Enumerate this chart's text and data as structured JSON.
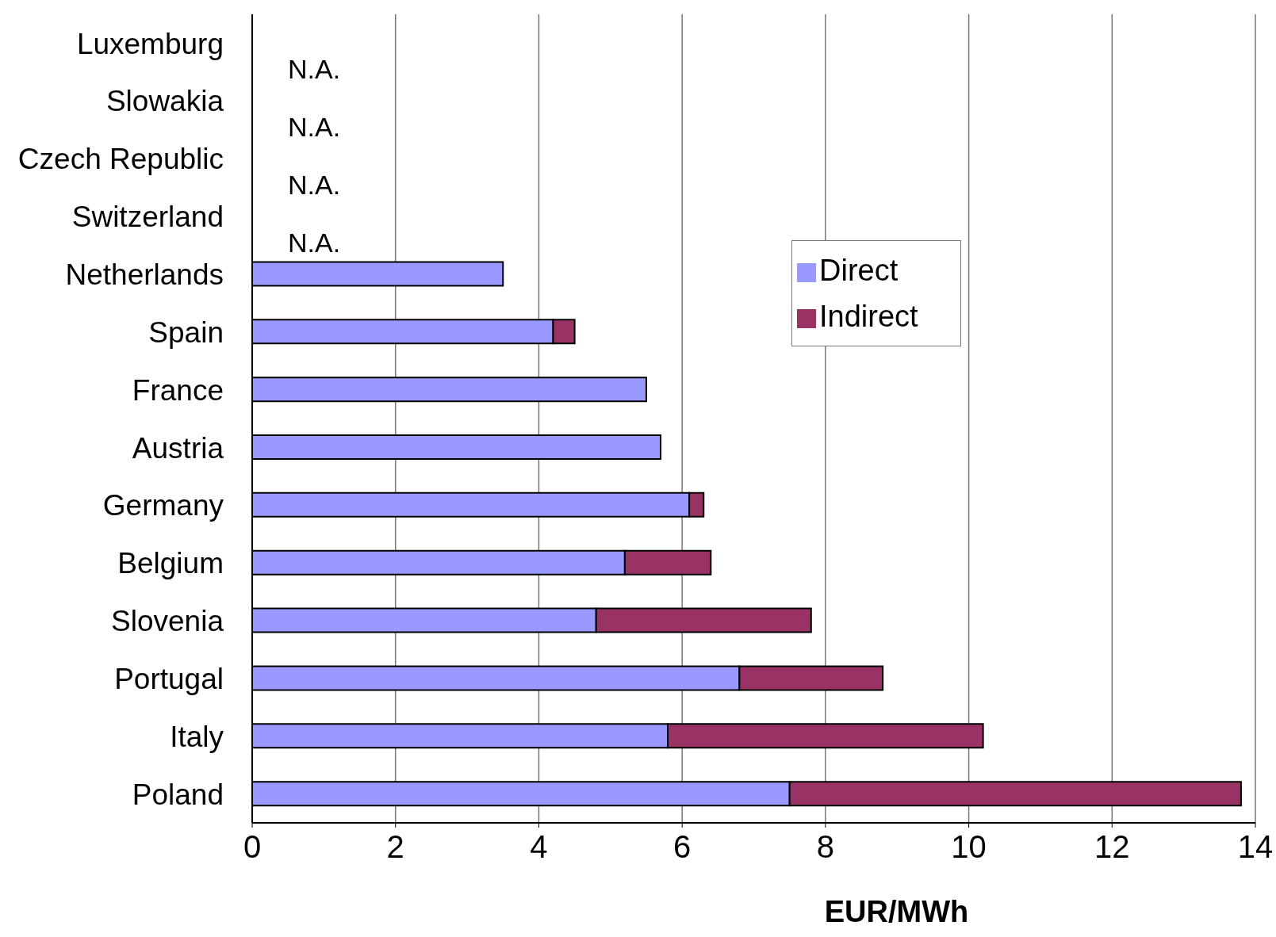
{
  "chart_data": {
    "type": "bar",
    "orientation": "horizontal",
    "stacked": true,
    "xlabel": "EUR/MWh",
    "categories": [
      "Luxemburg",
      "Slowakia",
      "Czech Republic",
      "Switzerland",
      "Netherlands",
      "Spain",
      "France",
      "Austria",
      "Germany",
      "Belgium",
      "Slovenia",
      "Portugal",
      "Italy",
      "Poland"
    ],
    "series": [
      {
        "name": "Direct",
        "color": "#9999ff",
        "values": [
          null,
          null,
          null,
          null,
          3.5,
          4.2,
          5.5,
          5.7,
          6.1,
          5.2,
          4.8,
          6.8,
          5.8,
          7.5
        ]
      },
      {
        "name": "Indirect",
        "color": "#993366",
        "values": [
          null,
          null,
          null,
          null,
          null,
          0.3,
          null,
          null,
          0.2,
          1.2,
          3.0,
          2.0,
          4.4,
          6.3
        ]
      }
    ],
    "xlim": [
      0,
      14
    ],
    "xticks": [
      0,
      2,
      4,
      6,
      8,
      10,
      12,
      14
    ],
    "grid": "x",
    "legend": "top right",
    "annotations": [
      "N.A.",
      "N.A.",
      "N.A.",
      "N.A."
    ]
  }
}
